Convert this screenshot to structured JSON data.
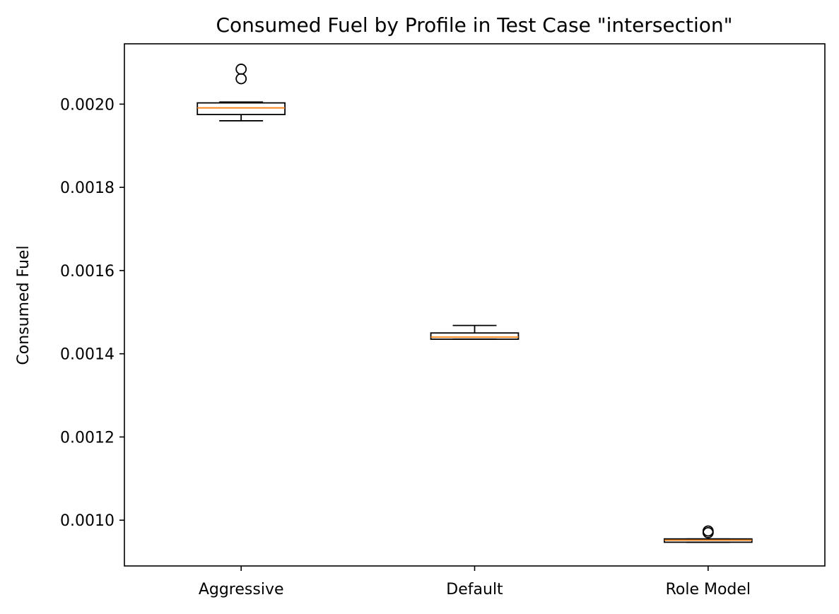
{
  "chart_data": {
    "type": "boxplot",
    "title": "Consumed Fuel by Profile in Test Case \"intersection\"",
    "xlabel": "",
    "ylabel": "Consumed Fuel",
    "ylim": [
      0.00089,
      0.002145
    ],
    "yticks": [
      "0.0010",
      "0.0012",
      "0.0014",
      "0.0016",
      "0.0018",
      "0.0020"
    ],
    "yticks_values": [
      0.001,
      0.0012,
      0.0014,
      0.0016,
      0.0018,
      0.002
    ],
    "grid": false,
    "categories": [
      "Aggressive",
      "Default",
      "Role Model"
    ],
    "boxes": [
      {
        "category": "Aggressive",
        "whisker_low": 0.00196,
        "q1": 0.001975,
        "median": 0.001991,
        "q3": 0.002003,
        "whisker_high": 0.002005,
        "outliers": [
          0.002061,
          0.002084
        ]
      },
      {
        "category": "Default",
        "whisker_low": 0.001435,
        "q1": 0.001435,
        "median": 0.00144,
        "q3": 0.00145,
        "whisker_high": 0.001468,
        "outliers": []
      },
      {
        "category": "Role Model",
        "whisker_low": 0.000947,
        "q1": 0.000947,
        "median": 0.000952,
        "q3": 0.000955,
        "whisker_high": 0.000955,
        "outliers": [
          0.00097,
          0.000974
        ]
      }
    ],
    "colors": {
      "box": "#000000",
      "median": "#ff7f0e",
      "outlier": "#000000"
    }
  }
}
